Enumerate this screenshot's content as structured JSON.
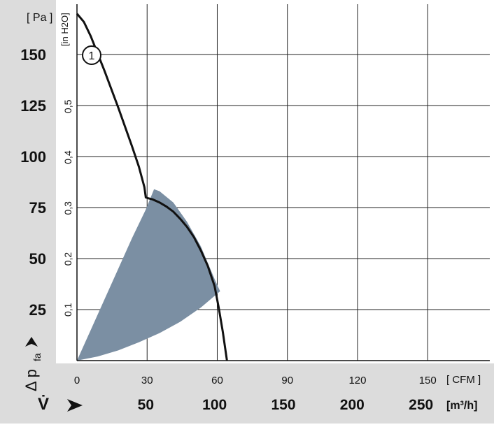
{
  "chart_data": {
    "type": "line",
    "y_unit_left": "[ Pa ]",
    "y_unit_inner": "[in H2O]",
    "x_unit_top": "[ CFM ]",
    "x_unit_bottom": "[m³/h]",
    "y_axis_symbol": "Δ p",
    "y_axis_subscript": "fa",
    "x_axis_symbol": "V̇",
    "y_ticks_pa": [
      "25",
      "50",
      "75",
      "100",
      "125",
      "150"
    ],
    "y_ticks_inh2o": [
      "0,1",
      "0,2",
      "0,3",
      "0,4",
      "0,5"
    ],
    "x_ticks_cfm": [
      "0",
      "30",
      "60",
      "90",
      "120",
      "150"
    ],
    "x_ticks_m3h": [
      "50",
      "100",
      "150",
      "200",
      "250"
    ],
    "xlim_m3h": [
      0,
      300
    ],
    "ylim_pa": [
      0,
      170
    ],
    "grid": true,
    "curve_label": "1",
    "series": [
      {
        "label": "1",
        "x": [
          0,
          5,
          10,
          20,
          30,
          40,
          45,
          49,
          50,
          52,
          55,
          60,
          65,
          70,
          75,
          80,
          85,
          90,
          95,
          100,
          103,
          106,
          109
        ],
        "y": [
          170,
          166,
          159,
          142,
          124,
          105,
          95,
          85,
          80,
          79.5,
          79,
          77.5,
          75.5,
          73,
          69.5,
          65.5,
          60.5,
          54,
          46.5,
          36.5,
          26,
          14,
          0
        ]
      }
    ],
    "operating_area": {
      "color": "#7b8fa3",
      "upper_x": [
        0,
        10,
        20,
        30,
        40,
        50,
        56,
        60,
        70,
        80,
        90,
        100,
        104
      ],
      "upper_y": [
        0,
        15,
        30,
        45,
        60,
        74,
        84,
        83,
        77.5,
        68,
        56,
        40,
        34
      ],
      "lower_x": [
        104,
        90,
        75,
        60,
        45,
        30,
        15,
        0
      ],
      "lower_y": [
        34,
        26,
        19,
        13.5,
        9,
        5,
        2,
        0
      ]
    }
  }
}
